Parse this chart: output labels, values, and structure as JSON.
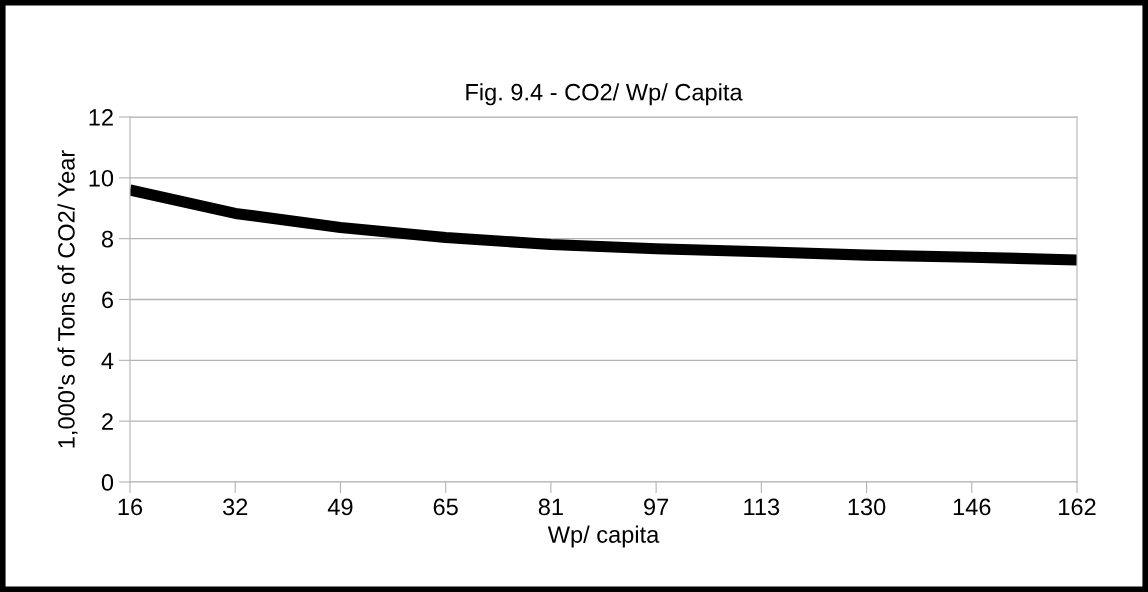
{
  "chart_data": {
    "type": "line",
    "title": "Fig. 9.4 - CO2/ Wp/ Capita",
    "xlabel": "Wp/ capita",
    "ylabel": "1,000's of Tons of CO2/ Year",
    "categories": [
      "16",
      "32",
      "49",
      "65",
      "81",
      "97",
      "113",
      "130",
      "146",
      "162"
    ],
    "series": [
      {
        "color": "#000000",
        "values": [
          9.6,
          8.83,
          8.37,
          8.04,
          7.81,
          7.67,
          7.57,
          7.46,
          7.39,
          7.3
        ]
      }
    ],
    "ylim": [
      0,
      12
    ],
    "yticks": [
      0,
      2,
      4,
      6,
      8,
      10,
      12
    ],
    "grid": "y",
    "legend": false,
    "marker": "none",
    "line_style": "solid"
  }
}
